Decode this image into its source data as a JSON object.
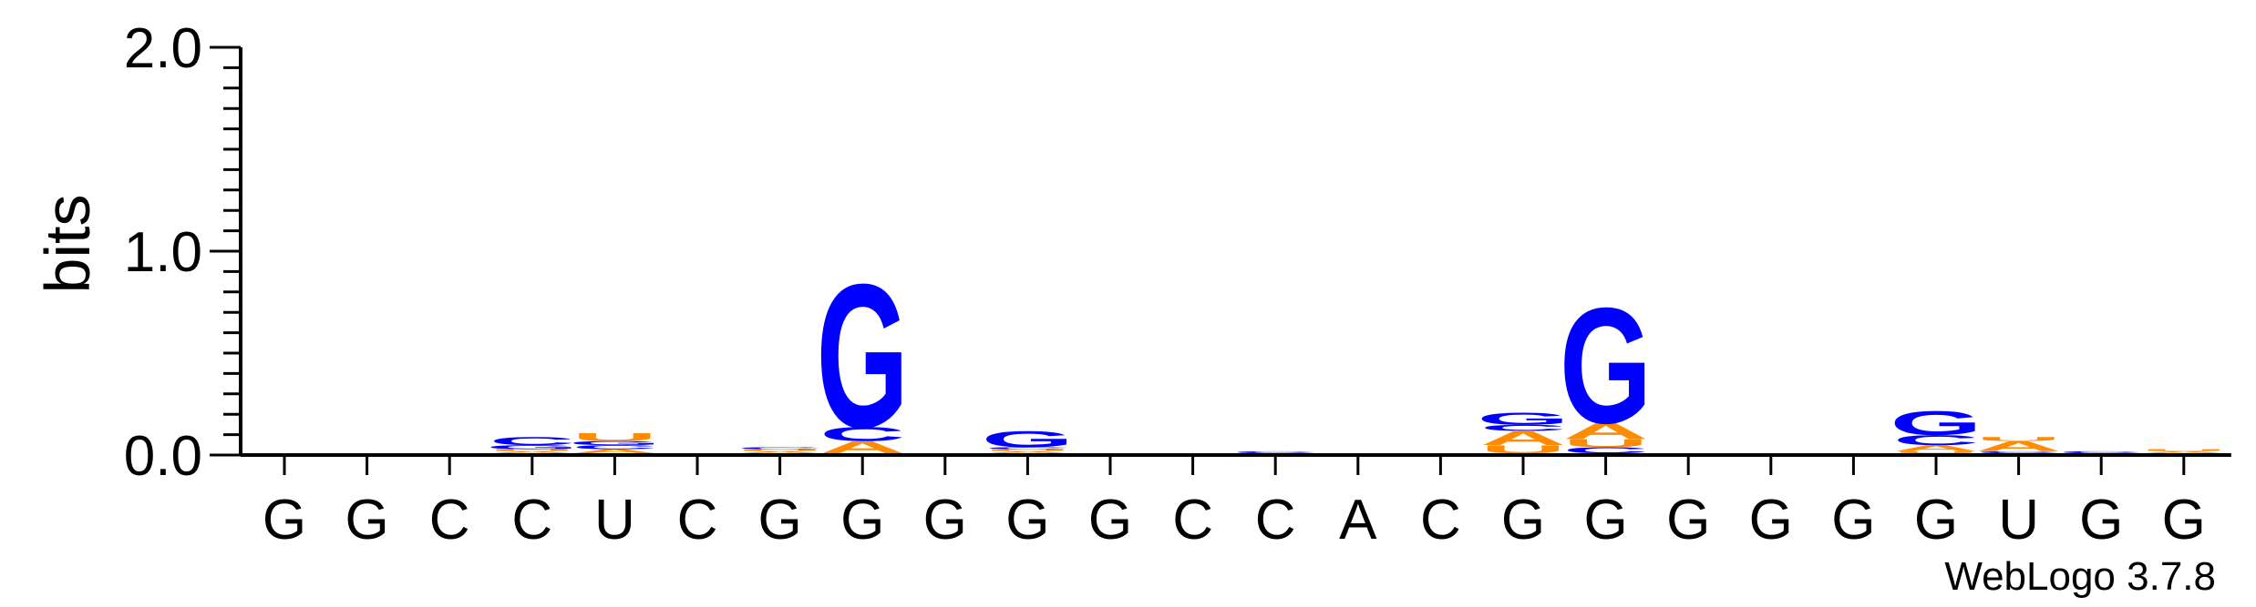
{
  "chart_data": {
    "type": "sequence-logo",
    "title": "",
    "xlabel": "",
    "ylabel": "bits",
    "ylim": [
      0,
      2.0
    ],
    "yticks": [
      "0.0",
      "1.0",
      "2.0"
    ],
    "positions": [
      "G",
      "G",
      "C",
      "C",
      "U",
      "C",
      "G",
      "G",
      "G",
      "G",
      "G",
      "C",
      "C",
      "A",
      "C",
      "G",
      "G",
      "G",
      "G",
      "G",
      "G",
      "U",
      "G",
      "G"
    ],
    "colors": {
      "A": "#ff8c00",
      "C": "#0000ff",
      "G": "#0000ff",
      "U": "#ff8c00"
    },
    "stacks": [
      [],
      [],
      [],
      [
        {
          "letter": "A",
          "height": 0.01
        },
        {
          "letter": "U",
          "height": 0.01
        },
        {
          "letter": "G",
          "height": 0.02
        },
        {
          "letter": "C",
          "height": 0.04
        }
      ],
      [
        {
          "letter": "A",
          "height": 0.02
        },
        {
          "letter": "C",
          "height": 0.02
        },
        {
          "letter": "G",
          "height": 0.02
        },
        {
          "letter": "U",
          "height": 0.04
        }
      ],
      [],
      [
        {
          "letter": "A",
          "height": 0.01
        },
        {
          "letter": "U",
          "height": 0.01
        },
        {
          "letter": "C",
          "height": 0.01
        }
      ],
      [
        {
          "letter": "A",
          "height": 0.06
        },
        {
          "letter": "C",
          "height": 0.07
        },
        {
          "letter": "G",
          "height": 0.72
        }
      ],
      [],
      [
        {
          "letter": "A",
          "height": 0.01
        },
        {
          "letter": "U",
          "height": 0.01
        },
        {
          "letter": "C",
          "height": 0.01
        },
        {
          "letter": "G",
          "height": 0.08
        }
      ],
      [],
      [],
      [
        {
          "letter": "C",
          "height": 0.01
        }
      ],
      [],
      [],
      [
        {
          "letter": "U",
          "height": 0.04
        },
        {
          "letter": "A",
          "height": 0.07
        },
        {
          "letter": "C",
          "height": 0.03
        },
        {
          "letter": "G",
          "height": 0.06
        }
      ],
      [
        {
          "letter": "C",
          "height": 0.03
        },
        {
          "letter": "U",
          "height": 0.04
        },
        {
          "letter": "A",
          "height": 0.08
        },
        {
          "letter": "G",
          "height": 0.58
        }
      ],
      [],
      [],
      [],
      [
        {
          "letter": "U",
          "height": 0.01
        },
        {
          "letter": "A",
          "height": 0.03
        },
        {
          "letter": "C",
          "height": 0.05
        },
        {
          "letter": "G",
          "height": 0.12
        }
      ],
      [
        {
          "letter": "C",
          "height": 0.01
        },
        {
          "letter": "A",
          "height": 0.05
        },
        {
          "letter": "U",
          "height": 0.02
        }
      ],
      [
        {
          "letter": "C",
          "height": 0.01
        }
      ],
      [
        {
          "letter": "A",
          "height": 0.01
        },
        {
          "letter": "U",
          "height": 0.01
        }
      ]
    ]
  },
  "footer": {
    "credit": "WebLogo 3.7.8"
  }
}
